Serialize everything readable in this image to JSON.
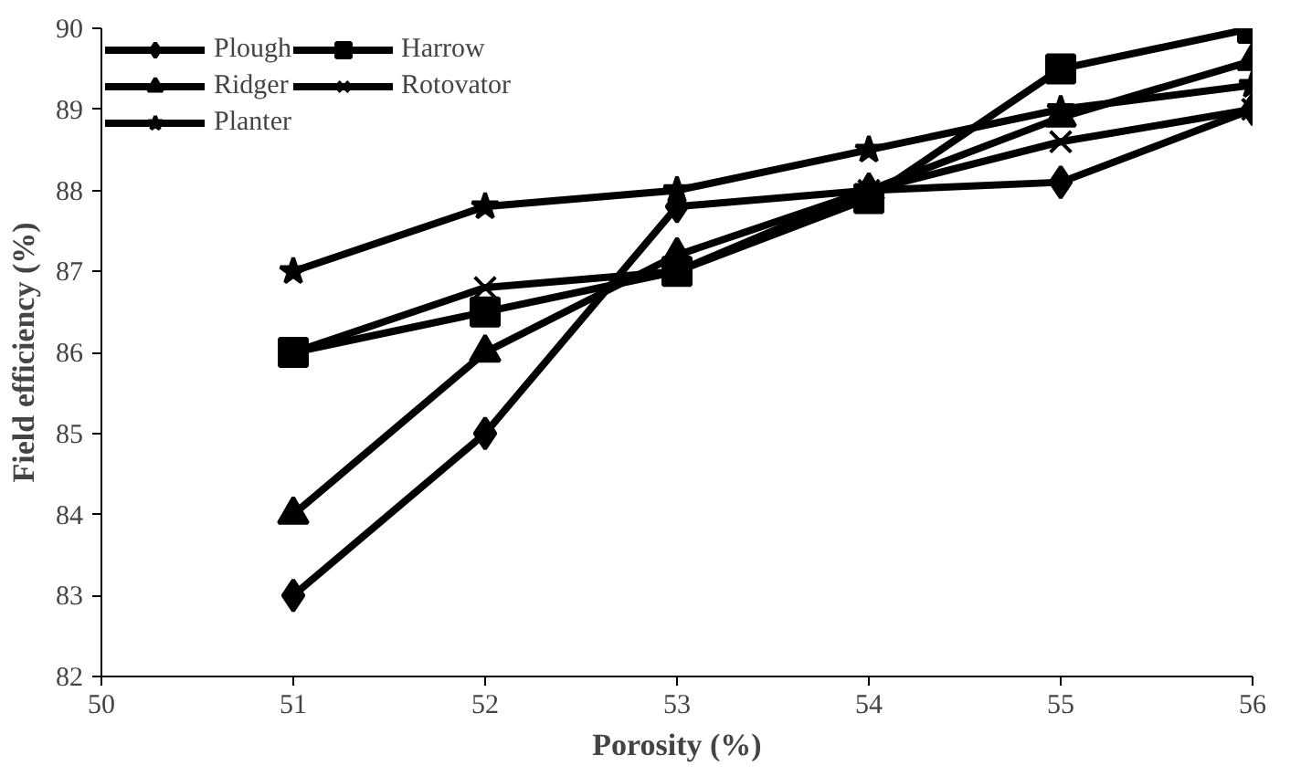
{
  "chart_data": {
    "type": "line",
    "xlabel": "Porosity (%)",
    "ylabel": "Field efficiency (%)",
    "x": [
      51,
      52,
      53,
      54,
      55,
      56
    ],
    "xlim": [
      50,
      56
    ],
    "xticks": [
      50,
      51,
      52,
      53,
      54,
      55,
      56
    ],
    "ylim": [
      82,
      90
    ],
    "yticks": [
      82,
      83,
      84,
      85,
      86,
      87,
      88,
      89,
      90
    ],
    "grid": false,
    "legend": "top left",
    "line_style": "solid",
    "series": [
      {
        "name": "Plough",
        "color": "#000000",
        "marker": "diamond",
        "values": [
          83,
          85,
          87.8,
          88,
          88.1,
          89
        ]
      },
      {
        "name": "Harrow",
        "color": "#000000",
        "marker": "square",
        "values": [
          86,
          86.5,
          87,
          87.9,
          89.5,
          90
        ]
      },
      {
        "name": "Ridger",
        "color": "#000000",
        "marker": "triangle",
        "values": [
          84,
          86,
          87.2,
          88,
          88.9,
          89.6
        ]
      },
      {
        "name": "Rotovator",
        "color": "#000000",
        "marker": "cross",
        "values": [
          86,
          86.8,
          87,
          88,
          88.6,
          89
        ]
      },
      {
        "name": "Planter",
        "color": "#000000",
        "marker": "star",
        "values": [
          87,
          87.8,
          88,
          88.5,
          89,
          89.3
        ]
      }
    ]
  }
}
